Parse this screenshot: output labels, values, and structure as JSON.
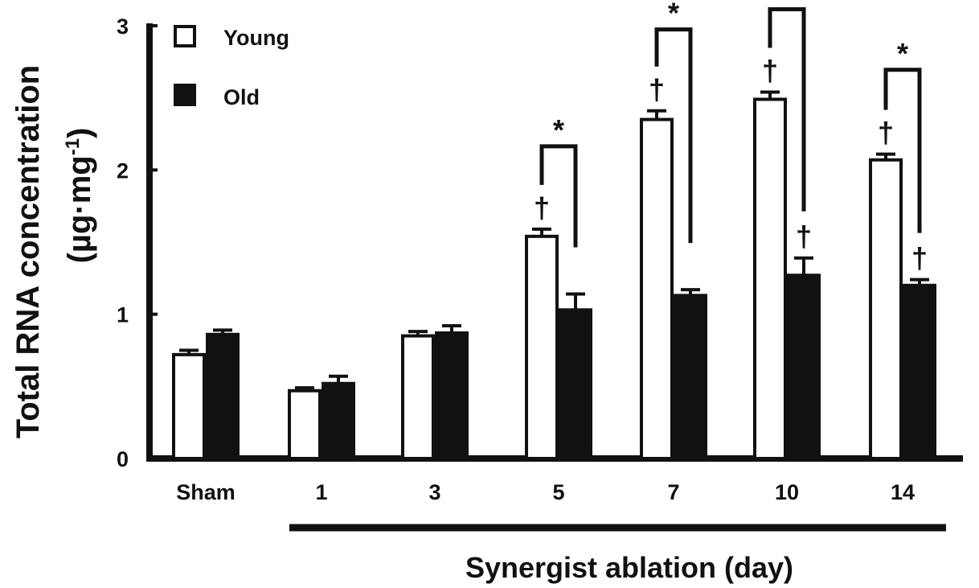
{
  "chart_data": {
    "type": "bar",
    "ylabel_line1": "Total RNA concentration",
    "ylabel_line2_prefix": "(µg·mg",
    "ylabel_line2_sup": "-1",
    "ylabel_line2_suffix": ")",
    "xlabel": "Synergist ablation (day)",
    "ylim": [
      0,
      3
    ],
    "yticks": [
      "0",
      "1",
      "2",
      "3"
    ],
    "categories": [
      "Sham",
      "1",
      "3",
      "5",
      "7",
      "10",
      "14"
    ],
    "series": [
      {
        "name": "Young",
        "color": "#ffffff",
        "values": [
          0.72,
          0.47,
          0.85,
          1.54,
          2.35,
          2.49,
          2.07
        ],
        "errors": [
          0.03,
          0.02,
          0.03,
          0.05,
          0.06,
          0.05,
          0.04
        ],
        "dagger": [
          false,
          false,
          false,
          true,
          true,
          true,
          true
        ]
      },
      {
        "name": "Old",
        "color": "#111111",
        "values": [
          0.86,
          0.52,
          0.87,
          1.03,
          1.13,
          1.27,
          1.2
        ],
        "errors": [
          0.03,
          0.05,
          0.05,
          0.11,
          0.04,
          0.12,
          0.04
        ],
        "dagger": [
          false,
          false,
          false,
          false,
          false,
          true,
          true
        ]
      }
    ],
    "significance": [
      {
        "category": "5",
        "label": "*"
      },
      {
        "category": "7",
        "label": "*"
      },
      {
        "category": "10",
        "label": ""
      },
      {
        "category": "14",
        "label": "*"
      }
    ],
    "dagger_symbol": "†",
    "legend_position": "top-left",
    "grid": false
  }
}
